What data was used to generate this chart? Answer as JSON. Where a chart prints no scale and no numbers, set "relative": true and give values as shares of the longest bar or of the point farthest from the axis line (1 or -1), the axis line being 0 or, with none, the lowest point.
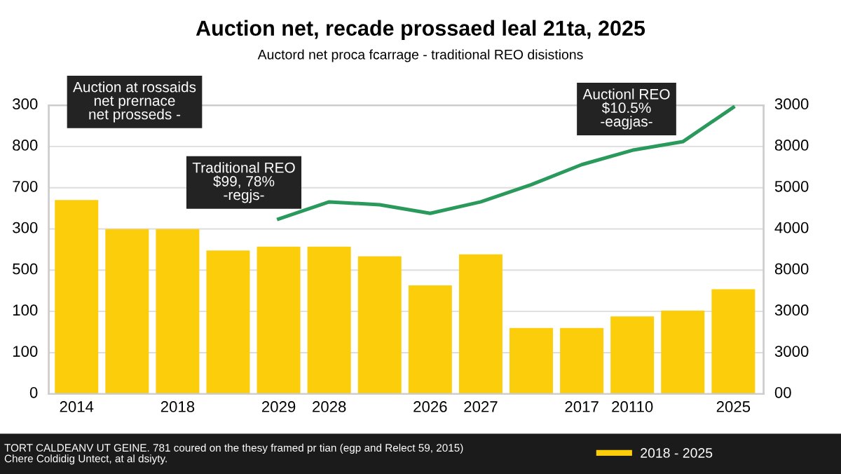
{
  "chart_data": {
    "type": "bar",
    "title": "Auction net, recade prossaed leal 21ta, 2025",
    "subtitle": "Auctord net proca fcarrage - traditional REO disistions",
    "categories": [
      "2014",
      null,
      "2018",
      null,
      "2029",
      "2028",
      null,
      "2026",
      "2027",
      null,
      "2017",
      "20110",
      null,
      "2025"
    ],
    "relative": true,
    "series": [
      {
        "name": "2018 - 2025",
        "color": "#fbcd0b",
        "values": [
          1,
          0.85,
          0.85,
          0.74,
          0.76,
          0.76,
          0.71,
          0.56,
          0.72,
          0.34,
          0.34,
          0.4,
          0.43,
          0.54
        ]
      },
      {
        "type": "line",
        "axis": "y2",
        "color": "#2a9a5c",
        "values": [
          null,
          null,
          null,
          null,
          0.61,
          0.67,
          0.66,
          0.63,
          0.67,
          0.73,
          0.8,
          0.85,
          0.88,
          1
        ]
      }
    ],
    "grid": "y",
    "legend": "bottom",
    "line_style": "solid",
    "annotations": [
      "Auction at rossaids\nnet prernace\nnet prosseds -",
      "Traditional REO\n$99, 78%\n-regjs-",
      "Auctionl REO\n$10.5%\n-eagjas-",
      "TORT CALDEANV UT GEINE. 781 coured on the thesy framed pr tian (egp and Relect 59, 2015)\nChere Coldidig Untect, at al dsiyty.",
      "0",
      "100",
      "100",
      "500",
      "300",
      "700",
      "800",
      "300",
      "00",
      "3000",
      "3000",
      "8000",
      "4000",
      "5000",
      "8000",
      "3000"
    ]
  }
}
